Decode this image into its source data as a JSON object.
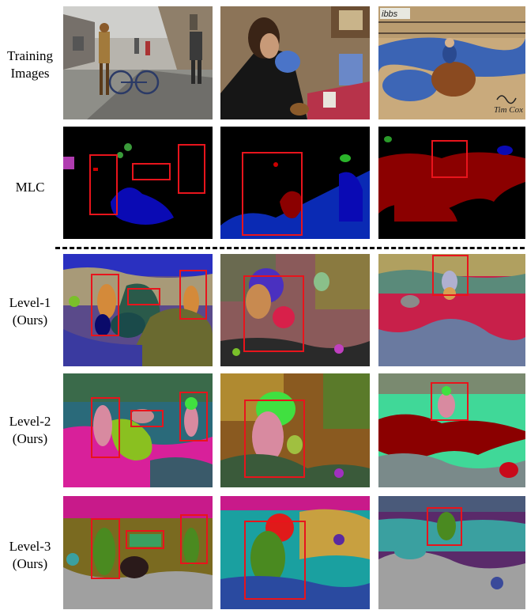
{
  "figure": {
    "rows": [
      {
        "id": "training",
        "label_lines": [
          "Training",
          "Images"
        ]
      },
      {
        "id": "mlc",
        "label_lines": [
          "MLC"
        ]
      },
      {
        "id": "level1",
        "label_lines": [
          "Level-1",
          "(Ours)"
        ]
      },
      {
        "id": "level2",
        "label_lines": [
          "Level-2",
          "(Ours)"
        ]
      },
      {
        "id": "level3",
        "label_lines": [
          "Level-3",
          "(Ours)"
        ]
      }
    ],
    "photo_text": {
      "shop_sign": "ibbs",
      "signature": "Tim Cox"
    },
    "colors": {
      "box": "#e8141c",
      "mlc_background": "#000000",
      "mlc_red_region": "#8b0000",
      "mlc_blue_region": "#0a0ab4"
    }
  }
}
